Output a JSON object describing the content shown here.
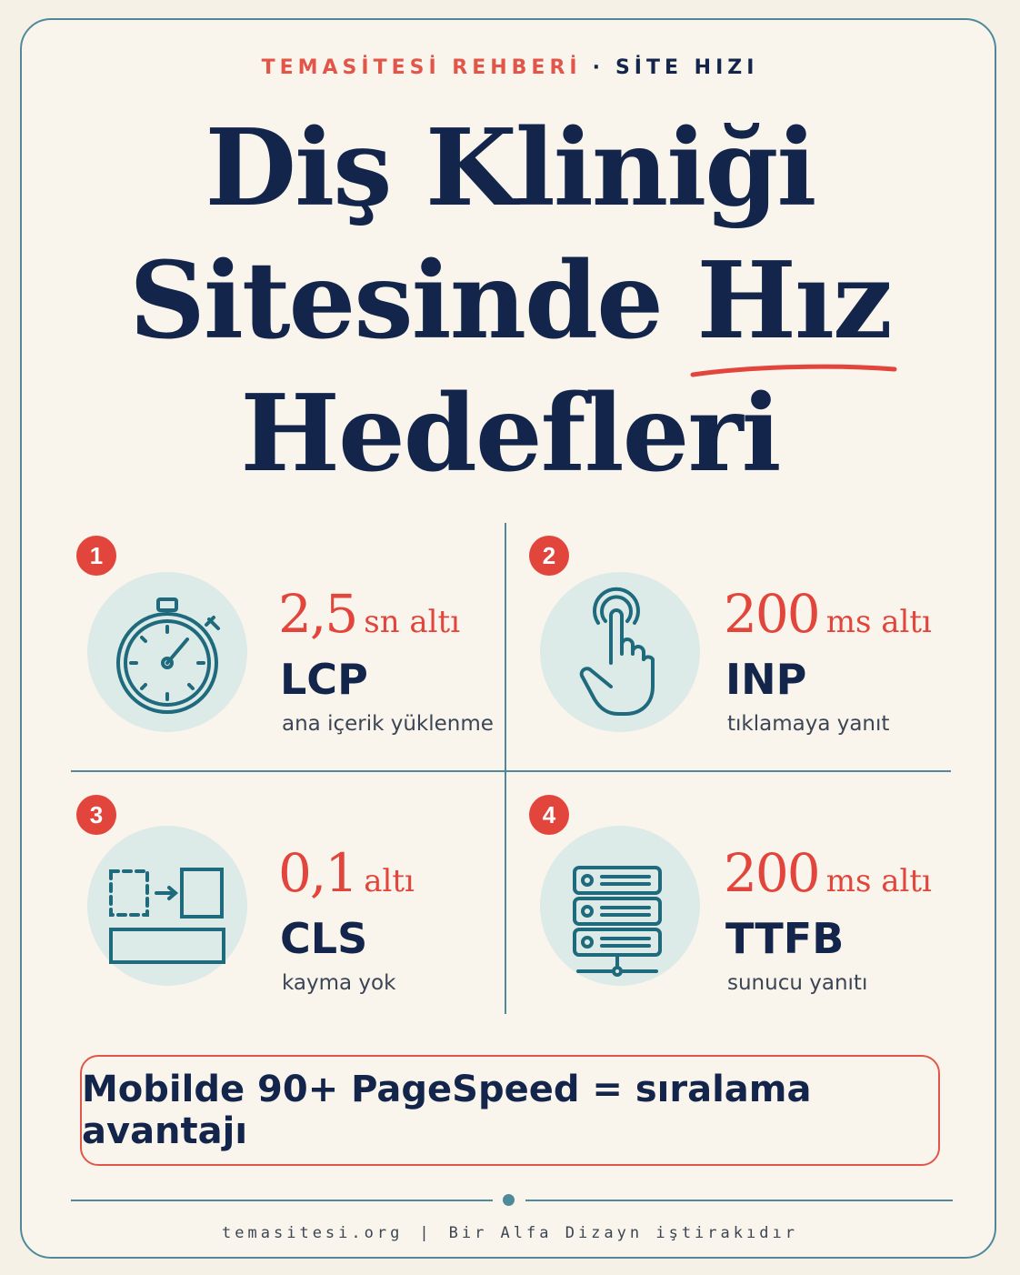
{
  "header": {
    "brand": "TEMASİTESİ REHBERİ",
    "separator": "·",
    "topic": "SİTE HIZI"
  },
  "title": {
    "line1": "Diş Kliniği",
    "line2": "Sitesinde Hız",
    "line3": "Hedefleri"
  },
  "metrics": [
    {
      "number": "1",
      "value": "2,5",
      "unit": "sn altı",
      "name": "LCP",
      "description": "ana içerik yüklenme",
      "icon": "stopwatch-icon"
    },
    {
      "number": "2",
      "value": "200",
      "unit": "ms altı",
      "name": "INP",
      "description": "tıklamaya yanıt",
      "icon": "tap-hand-icon"
    },
    {
      "number": "3",
      "value": "0,1",
      "unit": "altı",
      "name": "CLS",
      "description": "kayma yok",
      "icon": "layout-shift-icon"
    },
    {
      "number": "4",
      "value": "200",
      "unit": "ms altı",
      "name": "TTFB",
      "description": "sunucu yanıtı",
      "icon": "server-icon"
    }
  ],
  "cta": {
    "text": "Mobilde 90+ PageSpeed = sıralama avantajı"
  },
  "footer": {
    "site": "temasitesi.org",
    "separator": "|",
    "note": "Bir Alfa Dizayn iştirakıdır"
  },
  "colors": {
    "navy": "#13254a",
    "accent_red": "#e2453b",
    "teal": "#4f8a9a",
    "icon_bg": "#dceae8",
    "background": "#f9f5ec"
  }
}
